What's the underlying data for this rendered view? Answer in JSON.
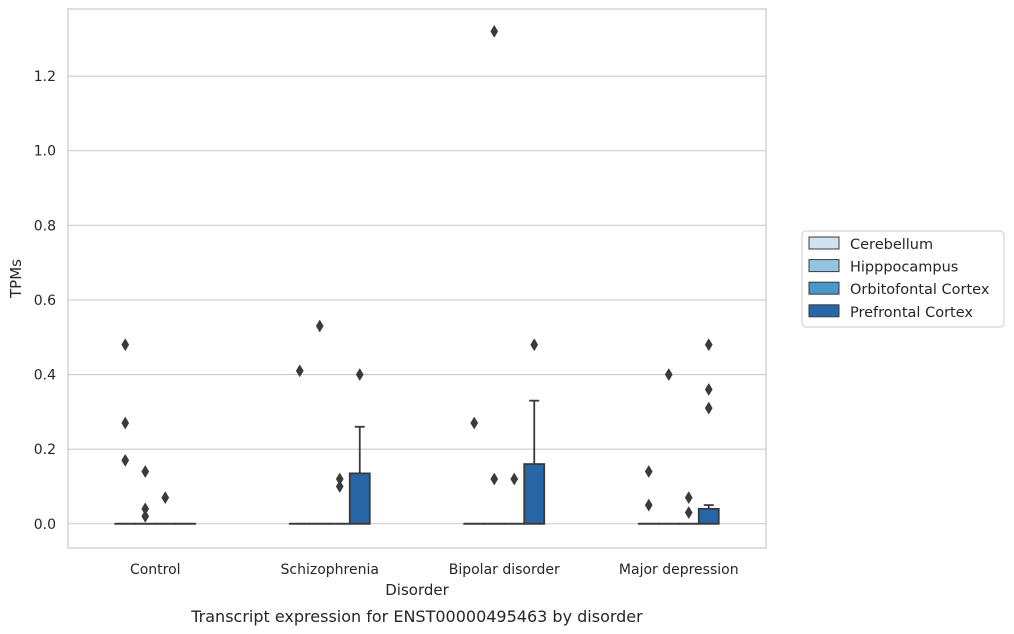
{
  "chart_data": {
    "type": "box",
    "caption": "Transcript expression for ENST00000495463 by disorder",
    "xlabel": "Disorder",
    "ylabel": "TPMs",
    "ylim": [
      -0.065,
      1.38
    ],
    "yticks": [
      0.0,
      0.2,
      0.4,
      0.6,
      0.8,
      1.0,
      1.2
    ],
    "ytick_labels": [
      "0.0",
      "0.2",
      "0.4",
      "0.6",
      "0.8",
      "1.0",
      "1.2"
    ],
    "grid": "horizontal",
    "legend_position": "right",
    "categories": [
      "Control",
      "Schizophrenia",
      "Bipolar disorder",
      "Major depression"
    ],
    "series": [
      {
        "name": "Cerebellum",
        "color": "#d0e1f2",
        "boxes": [
          {
            "q1": 0,
            "median": 0,
            "q3": 0,
            "whisker_low": 0,
            "whisker_high": 0,
            "outliers": [
              0.48,
              0.27,
              0.17
            ]
          },
          {
            "q1": 0,
            "median": 0,
            "q3": 0,
            "whisker_low": 0,
            "whisker_high": 0,
            "outliers": [
              0.41
            ]
          },
          {
            "q1": 0,
            "median": 0,
            "q3": 0,
            "whisker_low": 0,
            "whisker_high": 0,
            "outliers": [
              0.27
            ]
          },
          {
            "q1": 0,
            "median": 0,
            "q3": 0,
            "whisker_low": 0,
            "whisker_high": 0,
            "outliers": [
              0.14,
              0.05
            ]
          }
        ]
      },
      {
        "name": "Hipppocampus",
        "color": "#94c4df",
        "boxes": [
          {
            "q1": 0,
            "median": 0,
            "q3": 0,
            "whisker_low": 0,
            "whisker_high": 0,
            "outliers": [
              0.14,
              0.04,
              0.02
            ]
          },
          {
            "q1": 0,
            "median": 0,
            "q3": 0,
            "whisker_low": 0,
            "whisker_high": 0,
            "outliers": [
              0.53
            ]
          },
          {
            "q1": 0,
            "median": 0,
            "q3": 0,
            "whisker_low": 0,
            "whisker_high": 0,
            "outliers": [
              1.32,
              0.12
            ]
          },
          {
            "q1": 0,
            "median": 0,
            "q3": 0,
            "whisker_low": 0,
            "whisker_high": 0,
            "outliers": [
              0.4
            ]
          }
        ]
      },
      {
        "name": "Orbitofontal Cortex",
        "color": "#4a98c9",
        "boxes": [
          {
            "q1": 0,
            "median": 0,
            "q3": 0,
            "whisker_low": 0,
            "whisker_high": 0,
            "outliers": [
              0.07
            ]
          },
          {
            "q1": 0,
            "median": 0,
            "q3": 0,
            "whisker_low": 0,
            "whisker_high": 0,
            "outliers": [
              0.12,
              0.1
            ]
          },
          {
            "q1": 0,
            "median": 0,
            "q3": 0,
            "whisker_low": 0,
            "whisker_high": 0,
            "outliers": [
              0.12
            ]
          },
          {
            "q1": 0,
            "median": 0,
            "q3": 0,
            "whisker_low": 0,
            "whisker_high": 0,
            "outliers": [
              0.07,
              0.03
            ]
          }
        ]
      },
      {
        "name": "Prefrontal Cortex",
        "color": "#2666a6",
        "boxes": [
          {
            "q1": 0,
            "median": 0,
            "q3": 0,
            "whisker_low": 0,
            "whisker_high": 0,
            "outliers": []
          },
          {
            "q1": 0,
            "median": 0,
            "q3": 0.135,
            "whisker_low": 0,
            "whisker_high": 0.26,
            "outliers": [
              0.4
            ]
          },
          {
            "q1": 0,
            "median": 0,
            "q3": 0.16,
            "whisker_low": 0,
            "whisker_high": 0.33,
            "outliers": [
              0.48
            ]
          },
          {
            "q1": 0,
            "median": 0,
            "q3": 0.04,
            "whisker_low": 0,
            "whisker_high": 0.05,
            "outliers": [
              0.48,
              0.36,
              0.31
            ]
          }
        ]
      }
    ]
  }
}
